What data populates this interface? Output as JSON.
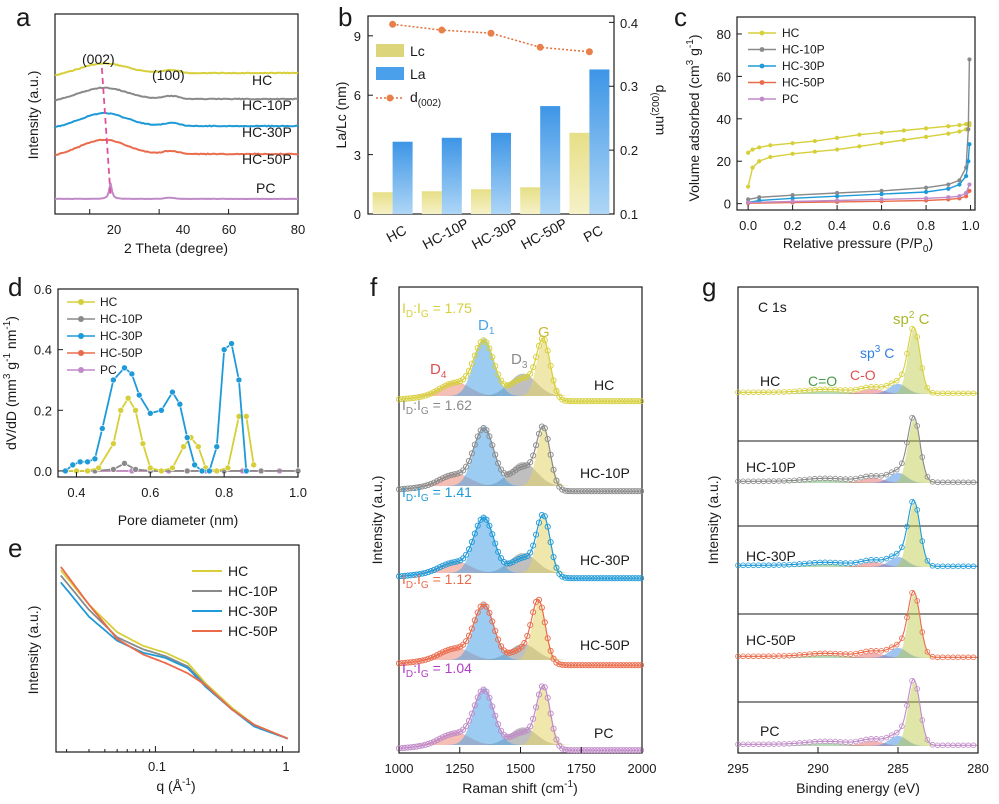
{
  "colors": {
    "HC": "#d6cf3a",
    "HC-10P": "#8a8a8a",
    "HC-30P": "#1f9ad8",
    "HC-50P": "#ea6b4b",
    "PC": "#c08ac8",
    "D4": "#ef8a78",
    "D1": "#4aa3e6",
    "D3": "#8a8a8a",
    "G": "#e3d36a",
    "CO_double": "#5aa85a",
    "CO_single": "#e05858",
    "sp3": "#2f7fe0",
    "sp2": "#b8c83c",
    "text_purple": "#b23cc8",
    "text_red": "#e05050"
  },
  "panels": {
    "a": {
      "letter": "a",
      "xlabel": "2 Theta (degree)",
      "ylabel": "Intensity (a.u.)",
      "xticks": [
        "20",
        "40",
        "60",
        "80"
      ],
      "peak_labels": [
        "(002)",
        "(100)"
      ],
      "curve_labels": [
        "HC",
        "HC-10P",
        "HC-30P",
        "HC-50P",
        "PC"
      ]
    },
    "b": {
      "letter": "b",
      "ylabel_left": "La/Lc (nm)",
      "ylabel_right_main": "d",
      "ylabel_right_sub": "(002)",
      "ylabel_right_unit": "nm",
      "yticks_left": [
        "0",
        "3",
        "6",
        "9"
      ],
      "yticks_right": [
        "0.1",
        "0.2",
        "0.3",
        "0.4"
      ],
      "legend": [
        "Lc",
        "La",
        "d"
      ],
      "legend_sub": "(002)"
    },
    "c": {
      "letter": "c",
      "ylabel": "Volume adsorbed (cm",
      "ylabel_sup": "3",
      "ylabel_tail": " g",
      "ylabel_sup2": "-1",
      "ylabel_end": ")",
      "xlabel": "Relative pressure (P/P",
      "xlabel_sub": "0",
      "xlabel_end": ")",
      "xticks": [
        "0.0",
        "0.2",
        "0.4",
        "0.6",
        "0.8",
        "1.0"
      ],
      "yticks": [
        "0",
        "20",
        "40",
        "60",
        "80"
      ],
      "legend": [
        "HC",
        "HC-10P",
        "HC-30P",
        "HC-50P",
        "PC"
      ]
    },
    "d": {
      "letter": "d",
      "ylabel": "dV/dD (mm",
      "ylabel_sup": "3",
      "ylabel_tail": " g",
      "ylabel_sup2": "-1",
      "ylabel_mid": " nm",
      "ylabel_sup3": "-1",
      "ylabel_end": ")",
      "xlabel": "Pore diameter (nm)",
      "xticks": [
        "0.4",
        "0.6",
        "0.8",
        "1.0"
      ],
      "yticks": [
        "0.0",
        "0.2",
        "0.4",
        "0.6"
      ],
      "legend": [
        "HC",
        "HC-10P",
        "HC-30P",
        "HC-50P",
        "PC"
      ]
    },
    "e": {
      "letter": "e",
      "ylabel": "Intensity (a.u.)",
      "xlabel": "q (Å",
      "xlabel_sup": "-1",
      "xlabel_end": ")",
      "xticks": [
        "0.1",
        "1"
      ],
      "legend": [
        "HC",
        "HC-10P",
        "HC-30P",
        "HC-50P"
      ]
    },
    "f": {
      "letter": "f",
      "ylabel": "Intensity (a.u.)",
      "xlabel": "Raman shift (cm",
      "xlabel_sup": "-1",
      "xlabel_end": ")",
      "xticks": [
        "1000",
        "1250",
        "1500",
        "1750",
        "2000"
      ],
      "ratio_prefix": "I",
      "ratio_sub1": "D",
      "ratio_mid": ":I",
      "ratio_sub2": "G",
      "ratios": [
        "= 1.75",
        "= 1.62",
        "= 1.41",
        "= 1.12",
        "= 1.04"
      ],
      "band_main": [
        "D",
        "D",
        "D",
        "G"
      ],
      "band_sub": [
        "4",
        "1",
        "3",
        ""
      ],
      "curve_labels": [
        "HC",
        "HC-10P",
        "HC-30P",
        "HC-50P",
        "PC"
      ]
    },
    "g": {
      "letter": "g",
      "ylabel": "Intensity (a.u.)",
      "xlabel": "Binding energy (eV)",
      "xticks": [
        "295",
        "290",
        "285",
        "280"
      ],
      "title": "C 1s",
      "comp_labels": [
        "C=O",
        "C-O",
        "sp",
        "C",
        "sp",
        "C"
      ],
      "comp_sup": [
        "3",
        "2"
      ],
      "curve_labels": [
        "HC",
        "HC-10P",
        "HC-30P",
        "HC-50P",
        "PC"
      ]
    }
  },
  "chart_data": [
    {
      "panel": "a",
      "type": "line",
      "xlabel": "2 Theta (degree)",
      "ylabel": "Intensity (a.u.)",
      "xlim": [
        10,
        80
      ],
      "series": [
        {
          "name": "HC"
        },
        {
          "name": "HC-10P"
        },
        {
          "name": "HC-30P"
        },
        {
          "name": "HC-50P"
        },
        {
          "name": "PC"
        }
      ],
      "peaks_2theta": {
        "002": 25,
        "100": 43
      }
    },
    {
      "panel": "b",
      "type": "bar",
      "categories": [
        "HC",
        "HC-10P",
        "HC-30P",
        "HC-50P",
        "PC"
      ],
      "ylabel": "La/Lc (nm)",
      "ylim": [
        0,
        10
      ],
      "y2lim": [
        0.1,
        0.41
      ],
      "series": [
        {
          "name": "Lc",
          "values": [
            1.1,
            1.15,
            1.25,
            1.35,
            4.1
          ]
        },
        {
          "name": "La",
          "values": [
            3.65,
            3.85,
            4.1,
            5.45,
            7.3
          ]
        },
        {
          "name": "d(002)",
          "axis": "right",
          "values": [
            0.397,
            0.388,
            0.383,
            0.361,
            0.354
          ]
        }
      ]
    },
    {
      "panel": "c",
      "type": "line",
      "xlabel": "Relative pressure (P/P0)",
      "ylabel": "Volume adsorbed (cm3 g-1)",
      "xlim": [
        -0.05,
        1.02
      ],
      "ylim": [
        -3,
        88
      ],
      "series": [
        {
          "name": "HC",
          "x": [
            0.0,
            0.02,
            0.05,
            0.1,
            0.2,
            0.3,
            0.4,
            0.5,
            0.6,
            0.7,
            0.8,
            0.9,
            0.95,
            0.98,
            0.995
          ],
          "adsorption": [
            8,
            17,
            20,
            22,
            23.5,
            24.5,
            25.5,
            27,
            28.5,
            30,
            31.5,
            33,
            34,
            35,
            37
          ],
          "desorption": [
            24,
            25.5,
            26.5,
            27.5,
            28.5,
            29.5,
            31,
            32.5,
            33.5,
            34.5,
            35.5,
            36.5,
            37,
            37.5,
            38
          ]
        },
        {
          "name": "HC-10P",
          "x": [
            0.0,
            0.05,
            0.2,
            0.4,
            0.6,
            0.8,
            0.9,
            0.95,
            0.98,
            0.99,
            0.995
          ],
          "adsorption": [
            2,
            3,
            4,
            5,
            6,
            7.5,
            9,
            11,
            17,
            35,
            68
          ]
        },
        {
          "name": "HC-30P",
          "x": [
            0.0,
            0.05,
            0.2,
            0.4,
            0.6,
            0.8,
            0.9,
            0.95,
            0.98,
            0.99,
            0.995
          ],
          "adsorption": [
            0.5,
            1.5,
            2.5,
            3.5,
            4.5,
            5.5,
            7,
            9,
            13,
            20,
            28
          ]
        },
        {
          "name": "HC-50P",
          "x": [
            0.0,
            0.2,
            0.4,
            0.6,
            0.8,
            0.9,
            0.95,
            0.98,
            0.995
          ],
          "adsorption": [
            0.2,
            0.5,
            0.8,
            1.1,
            1.5,
            2,
            2.5,
            3.5,
            6
          ]
        },
        {
          "name": "PC",
          "x": [
            0.0,
            0.2,
            0.4,
            0.6,
            0.8,
            0.9,
            0.95,
            0.98,
            0.995
          ],
          "adsorption": [
            0.5,
            1,
            1.5,
            2,
            2.5,
            3,
            3.5,
            5,
            9
          ]
        }
      ]
    },
    {
      "panel": "d",
      "type": "line",
      "xlabel": "Pore diameter (nm)",
      "ylabel": "dV/dD (mm3 g-1 nm-1)",
      "xlim": [
        0.35,
        1.0
      ],
      "ylim": [
        -0.02,
        0.6
      ],
      "series": [
        {
          "name": "HC",
          "x": [
            0.37,
            0.4,
            0.43,
            0.46,
            0.5,
            0.52,
            0.54,
            0.56,
            0.58,
            0.6,
            0.63,
            0.66,
            0.69,
            0.71,
            0.73,
            0.75,
            0.78,
            0.81,
            0.84,
            0.86,
            0.88
          ],
          "y": [
            0,
            0,
            0,
            0.01,
            0.09,
            0.2,
            0.24,
            0.2,
            0.09,
            0.01,
            0,
            0.01,
            0.08,
            0.11,
            0.08,
            0.01,
            0,
            0.01,
            0.18,
            0.18,
            0.02
          ]
        },
        {
          "name": "HC-10P",
          "x": [
            0.37,
            0.45,
            0.5,
            0.53,
            0.56,
            0.6,
            0.7,
            0.8,
            0.9,
            1.0
          ],
          "y": [
            0,
            0,
            0.005,
            0.025,
            0.005,
            0,
            0,
            0,
            0,
            0
          ]
        },
        {
          "name": "HC-30P",
          "x": [
            0.37,
            0.39,
            0.41,
            0.43,
            0.45,
            0.47,
            0.5,
            0.53,
            0.55,
            0.57,
            0.6,
            0.63,
            0.66,
            0.68,
            0.7,
            0.72,
            0.74,
            0.76,
            0.78,
            0.8,
            0.82,
            0.84,
            0.86
          ],
          "y": [
            0,
            0.02,
            0.03,
            0.03,
            0.04,
            0.14,
            0.3,
            0.34,
            0.32,
            0.25,
            0.19,
            0.2,
            0.26,
            0.22,
            0.11,
            0.02,
            0,
            0,
            0.08,
            0.4,
            0.42,
            0.3,
            0
          ]
        },
        {
          "name": "HC-50P",
          "x": [
            0.37,
            0.45,
            0.55,
            0.65,
            0.75,
            0.85,
            0.95,
            1.0
          ],
          "y": [
            0,
            0,
            0,
            0,
            0,
            0,
            0,
            0
          ]
        },
        {
          "name": "PC",
          "x": [
            0.37,
            0.45,
            0.55,
            0.65,
            0.75,
            0.85,
            0.95,
            1.0
          ],
          "y": [
            0,
            0,
            0,
            0,
            0,
            0,
            0,
            0
          ]
        }
      ]
    },
    {
      "panel": "e",
      "type": "line",
      "xlabel": "q (Å-1)",
      "ylabel": "Intensity (a.u.)",
      "xscale": "log",
      "series": [
        {
          "name": "HC",
          "q": [
            0.018,
            0.03,
            0.05,
            0.08,
            0.12,
            0.18,
            0.25,
            0.4,
            0.6,
            1.1
          ],
          "rel": [
            1.0,
            0.8,
            0.64,
            0.56,
            0.52,
            0.46,
            0.34,
            0.2,
            0.1,
            0.02
          ]
        },
        {
          "name": "HC-10P",
          "q": [
            0.018,
            0.03,
            0.05,
            0.08,
            0.12,
            0.18,
            0.25,
            0.4,
            0.6,
            1.1
          ],
          "rel": [
            0.97,
            0.77,
            0.61,
            0.54,
            0.5,
            0.44,
            0.33,
            0.19,
            0.1,
            0.02
          ]
        },
        {
          "name": "HC-30P",
          "q": [
            0.018,
            0.03,
            0.05,
            0.08,
            0.12,
            0.18,
            0.25,
            0.4,
            0.6,
            1.1
          ],
          "rel": [
            0.93,
            0.73,
            0.59,
            0.52,
            0.49,
            0.43,
            0.32,
            0.19,
            0.09,
            0.02
          ]
        },
        {
          "name": "HC-50P",
          "q": [
            0.018,
            0.03,
            0.05,
            0.08,
            0.12,
            0.18,
            0.25,
            0.4,
            0.6,
            1.1
          ],
          "rel": [
            1.02,
            0.8,
            0.6,
            0.51,
            0.46,
            0.4,
            0.33,
            0.19,
            0.1,
            0.02
          ]
        }
      ]
    },
    {
      "panel": "f",
      "type": "line",
      "xlabel": "Raman shift (cm-1)",
      "ylabel": "Intensity (a.u.)",
      "xlim": [
        1000,
        2000
      ],
      "band_positions": {
        "D4": 1230,
        "D1": 1350,
        "D3": 1510,
        "G": 1595
      },
      "series": [
        {
          "name": "HC",
          "ID_IG": 1.75
        },
        {
          "name": "HC-10P",
          "ID_IG": 1.62
        },
        {
          "name": "HC-30P",
          "ID_IG": 1.41
        },
        {
          "name": "HC-50P",
          "ID_IG": 1.12
        },
        {
          "name": "PC",
          "ID_IG": 1.04
        }
      ]
    },
    {
      "panel": "g",
      "type": "line",
      "xlabel": "Binding energy (eV)",
      "ylabel": "Intensity (a.u.)",
      "xlim": [
        295,
        280
      ],
      "components_eV": {
        "C=O": 289.5,
        "C-O": 286.5,
        "sp3 C": 285.0,
        "sp2 C": 284.0
      },
      "series": [
        {
          "name": "HC"
        },
        {
          "name": "HC-10P"
        },
        {
          "name": "HC-30P"
        },
        {
          "name": "HC-50P"
        },
        {
          "name": "PC"
        }
      ]
    }
  ]
}
